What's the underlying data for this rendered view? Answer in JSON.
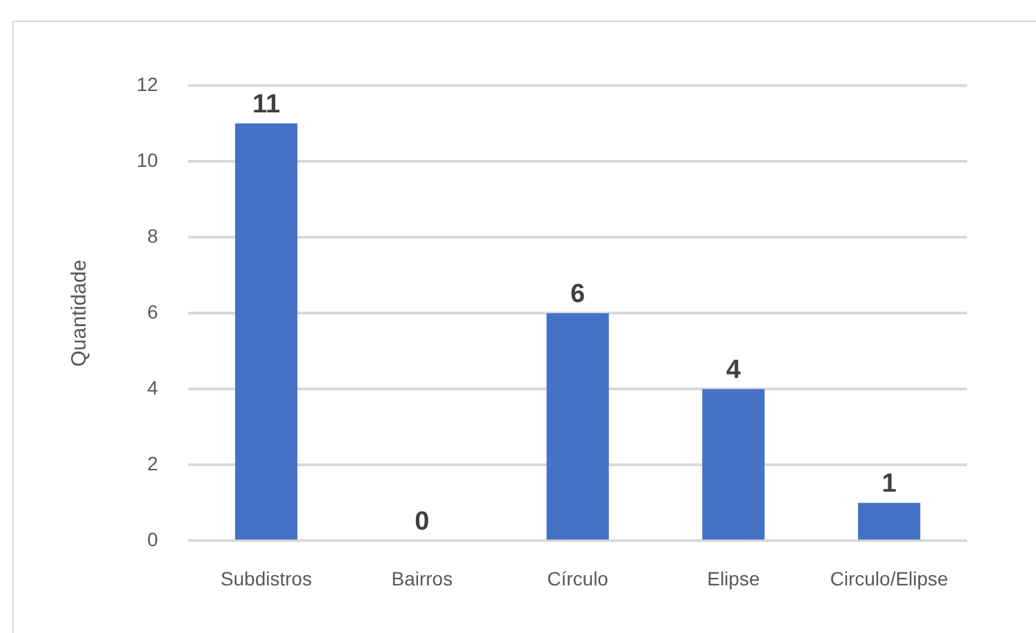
{
  "chart_data": {
    "type": "bar",
    "ylabel": "Quantidade",
    "categories": [
      "Subdistros",
      "Bairros",
      "Círculo",
      "Elipse",
      "Circulo/Elipse"
    ],
    "values": [
      11,
      0,
      6,
      4,
      1
    ],
    "color": "#4472c4",
    "ylim": [
      0,
      12
    ],
    "yticks": [
      0,
      2,
      4,
      6,
      8,
      10,
      12
    ],
    "grid": "y",
    "data_labels": true
  }
}
